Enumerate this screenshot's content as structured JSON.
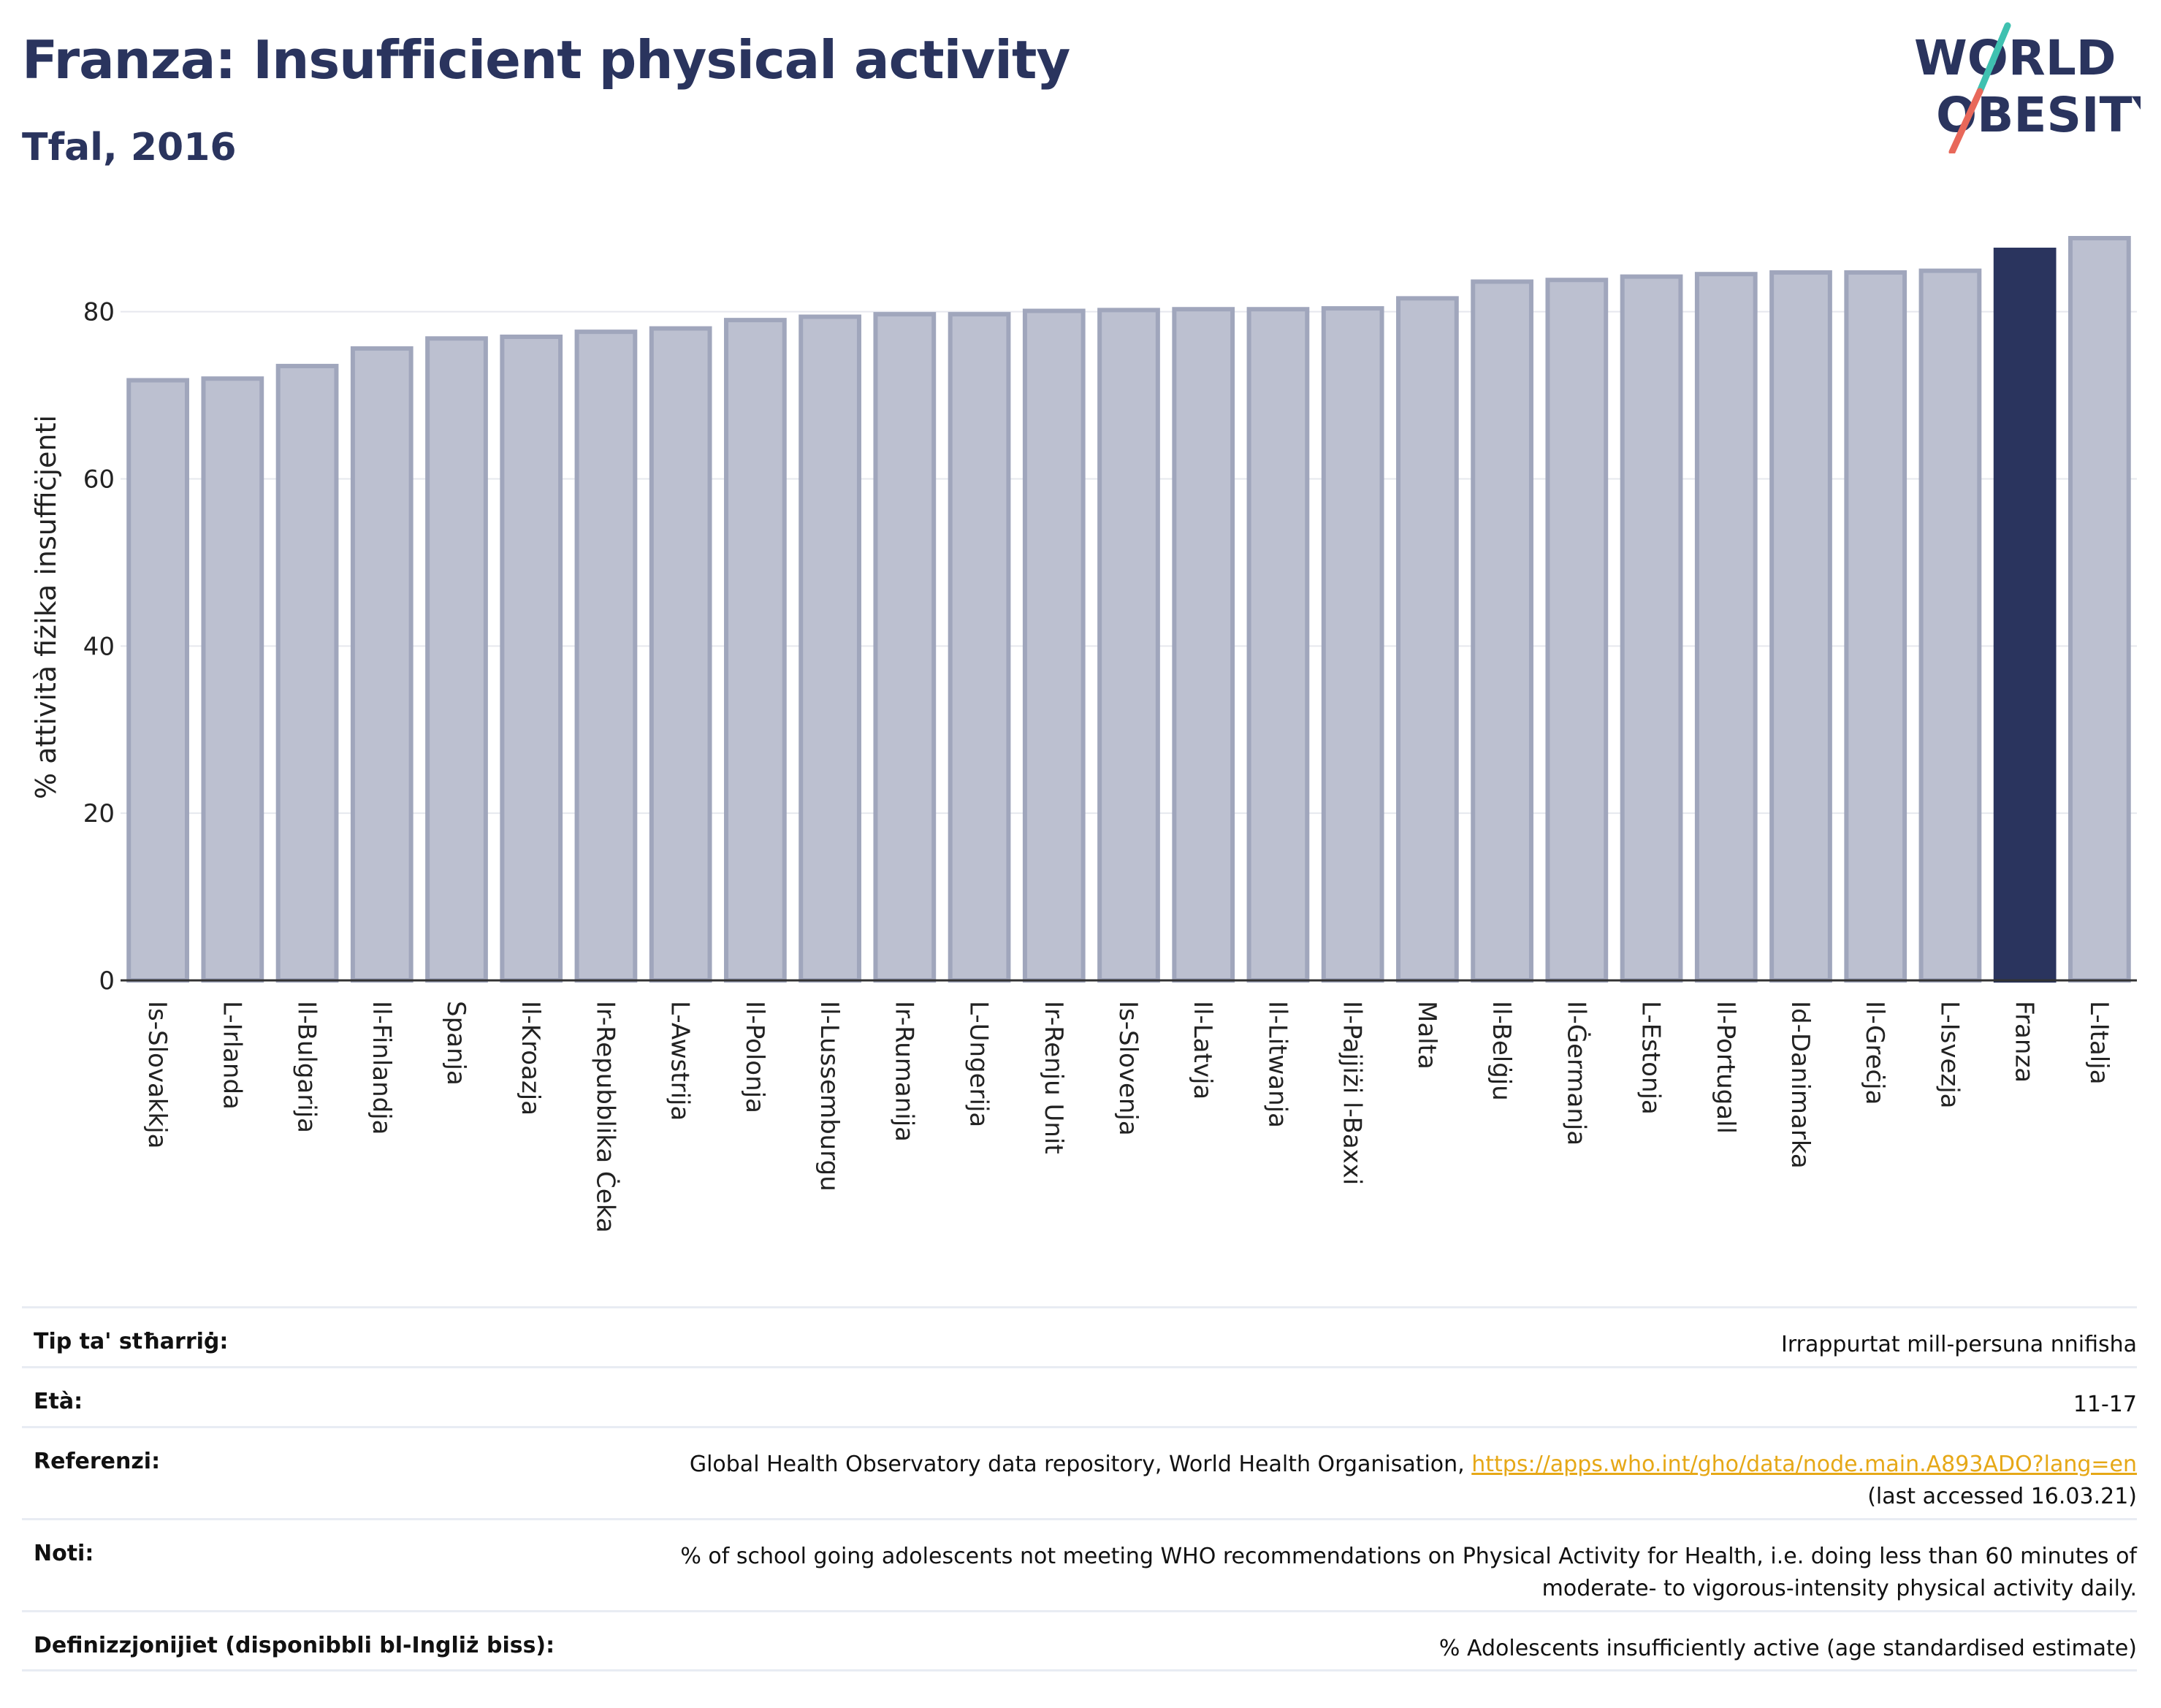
{
  "header": {
    "title": "Franza: Insufficient physical activity",
    "subtitle": "Tfal, 2016"
  },
  "logo": {
    "line1": "WORLD",
    "line2": "OBESITY",
    "colors": {
      "text": "#2a345e",
      "slash_top": "#3fc1b0",
      "slash_bottom": "#e8685a"
    }
  },
  "chart_data": {
    "type": "bar",
    "ylabel": "% attività fiżika insuffiċjenti",
    "xlabel": "",
    "ylim": [
      0,
      90
    ],
    "yticks": [
      0,
      20,
      40,
      60,
      80
    ],
    "grid": true,
    "highlight": "Franza",
    "colors": {
      "bar": "#bcc0d0",
      "bar_edge": "#a0a6bc",
      "highlight": "#2a345e"
    },
    "categories": [
      "Is-Slovakkja",
      "L-Irlanda",
      "Il-Bulgarija",
      "Il-Finlandja",
      "Spanja",
      "Il-Kroazja",
      "Ir-Repubblika Ċeka",
      "L-Awstrija",
      "Il-Polonja",
      "Il-Lussemburgu",
      "Ir-Rumanija",
      "L-Ungerija",
      "Ir-Renju Unit",
      "Is-Slovenja",
      "Il-Latvja",
      "Il-Litwanja",
      "Il-Pajjiżi l-Baxxi",
      "Malta",
      "Il-Belġju",
      "Il-Ġermanja",
      "L-Estonja",
      "Il-Portugall",
      "Id-Danimarka",
      "Il-Greċja",
      "L-Isvezja",
      "Franza",
      "L-Italja"
    ],
    "values": [
      71.8,
      72.0,
      73.5,
      75.6,
      76.8,
      77.0,
      77.6,
      78.0,
      79.0,
      79.4,
      79.7,
      79.7,
      80.1,
      80.2,
      80.3,
      80.3,
      80.4,
      81.6,
      83.6,
      83.8,
      84.2,
      84.5,
      84.7,
      84.7,
      84.9,
      87.4,
      88.8
    ]
  },
  "info": {
    "rows": [
      {
        "key": "Tip ta' stħarriġ:",
        "value": "Irrappurtat mill-persuna nnifisha"
      },
      {
        "key": "Età:",
        "value": "11-17"
      },
      {
        "key": "Referenzi:",
        "value": "Global Health Observatory data repository, World Health Organisation,",
        "link": "https://apps.who.int/gho/data/node.main.A893ADO?lang=en",
        "value2": "(last accessed 16.03.21)"
      },
      {
        "key": "Noti:",
        "value": "% of school going adolescents not meeting WHO recommendations on Physical Activity for Health, i.e. doing less than 60 minutes of moderate- to vigorous-intensity physical activity daily."
      },
      {
        "key": "Definizzjonijiet (disponibbli bl-Ingliż biss):",
        "value": "% Adolescents insufficiently active (age standardised estimate)"
      }
    ]
  }
}
